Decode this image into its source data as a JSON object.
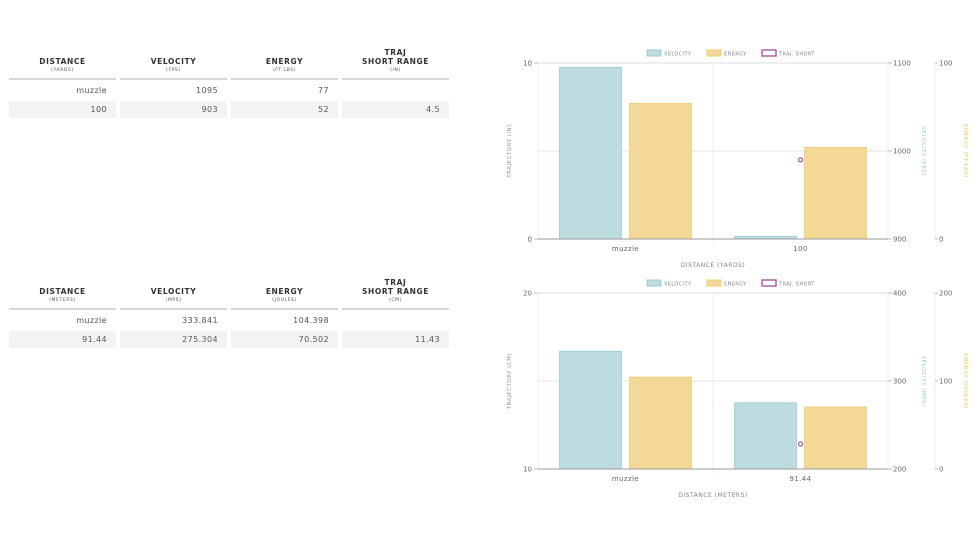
{
  "tables": [
    {
      "headers": [
        {
          "main": "DISTANCE",
          "unit": "(YARDS)"
        },
        {
          "main": "VELOCITY",
          "unit": "(FPS)"
        },
        {
          "main": "ENERGY",
          "unit": "(FT-LBS)"
        },
        {
          "main": "TRAJ\nSHORT RANGE",
          "unit": "(IN)"
        }
      ],
      "rows": [
        [
          "muzzle",
          "1095",
          "77",
          ""
        ],
        [
          "100",
          "903",
          "52",
          "4.5"
        ]
      ]
    },
    {
      "headers": [
        {
          "main": "DISTANCE",
          "unit": "(METERS)"
        },
        {
          "main": "VELOCITY",
          "unit": "(MPS)"
        },
        {
          "main": "ENERGY",
          "unit": "(JOULES)"
        },
        {
          "main": "TRAJ\nSHORT RANGE",
          "unit": "(CM)"
        }
      ],
      "rows": [
        [
          "muzzle",
          "333.841",
          "104.398",
          ""
        ],
        [
          "91.44",
          "275.304",
          "70.502",
          "11.43"
        ]
      ]
    }
  ],
  "colors": {
    "velocity_fill": "#bcdcdf",
    "velocity_stroke": "#9ccdd1",
    "energy_fill": "#f3d995",
    "energy_stroke": "#efcd75",
    "traj": "#b160a8",
    "velocity_axis_label": "#9ccdd1",
    "energy_axis_label": "#f0c96a",
    "grid": "#e6e6e6",
    "axis": "#999999",
    "text": "#666666"
  },
  "chart_data": [
    {
      "type": "bar",
      "title": "",
      "legend": [
        "VELOCITY",
        "ENERGY",
        "TRAJ. SHORT"
      ],
      "legend_position": "top",
      "categories": [
        "muzzle",
        "100"
      ],
      "xlabel": "DISTANCE (YARDS)",
      "series": [
        {
          "name": "VELOCITY",
          "axis": "velocity",
          "type": "bar",
          "values": [
            1095,
            903
          ]
        },
        {
          "name": "ENERGY",
          "axis": "energy",
          "type": "bar",
          "values": [
            77,
            52
          ]
        },
        {
          "name": "TRAJ. SHORT",
          "axis": "trajectory",
          "type": "point",
          "values": [
            null,
            4.5
          ]
        }
      ],
      "axes": {
        "trajectory": {
          "label": "TRAJECTORY (IN)",
          "range": [
            0,
            10
          ],
          "ticks": [
            "0",
            "10"
          ],
          "position": "left"
        },
        "velocity": {
          "label": "VELOCITY (FPS)",
          "range": [
            900,
            1100
          ],
          "ticks": [
            "900",
            "1000",
            "1100"
          ],
          "position": "right"
        },
        "energy": {
          "label": "ENERGY (FT-LBS)",
          "range": [
            0,
            100
          ],
          "ticks": [
            "0",
            "100"
          ],
          "position": "far-right"
        }
      },
      "grid": true
    },
    {
      "type": "bar",
      "title": "",
      "legend": [
        "VELOCITY",
        "ENERGY",
        "TRAJ. SHORT"
      ],
      "legend_position": "top",
      "categories": [
        "muzzle",
        "91.44"
      ],
      "xlabel": "DISTANCE (METERS)",
      "series": [
        {
          "name": "VELOCITY",
          "axis": "velocity",
          "type": "bar",
          "values": [
            333.841,
            275.304
          ]
        },
        {
          "name": "ENERGY",
          "axis": "energy",
          "type": "bar",
          "values": [
            104.398,
            70.502
          ]
        },
        {
          "name": "TRAJ. SHORT",
          "axis": "trajectory",
          "type": "point",
          "values": [
            null,
            11.43
          ]
        }
      ],
      "axes": {
        "trajectory": {
          "label": "TRAJECTORY (CM)",
          "range": [
            10,
            20
          ],
          "ticks": [
            "10",
            "20"
          ],
          "position": "left"
        },
        "velocity": {
          "label": "VELOCITY (MPS)",
          "range": [
            200,
            400
          ],
          "ticks": [
            "200",
            "300",
            "400"
          ],
          "position": "right"
        },
        "energy": {
          "label": "ENERGY (JOULES)",
          "range": [
            0,
            200
          ],
          "ticks": [
            "0",
            "100",
            "200"
          ],
          "position": "far-right"
        }
      },
      "grid": true
    }
  ]
}
